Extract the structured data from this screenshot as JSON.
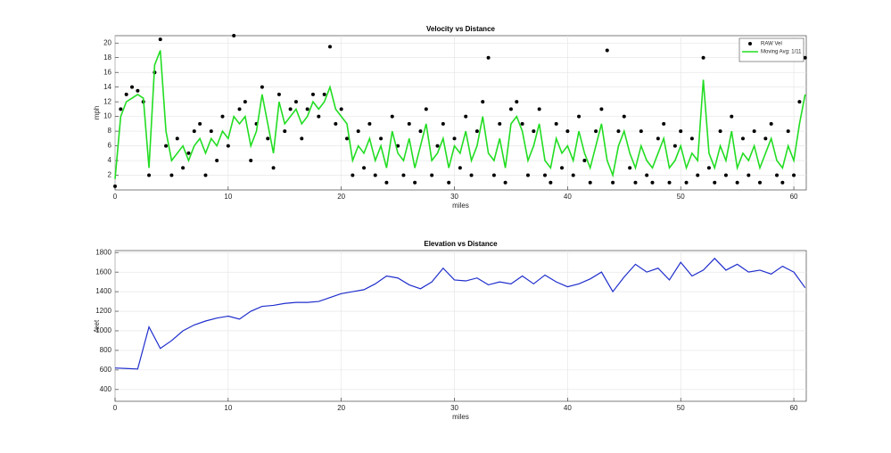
{
  "chart_data": [
    {
      "type": "scatter",
      "title": "Velocity vs Distance",
      "xlabel": "miles",
      "ylabel": "mph",
      "x": [
        0,
        0.5,
        1,
        1.5,
        2,
        2.5,
        3,
        3.5,
        4,
        4.5,
        5,
        5.5,
        6,
        6.5,
        7,
        7.5,
        8,
        8.5,
        9,
        9.5,
        10,
        10.5,
        11,
        11.5,
        12,
        12.5,
        13,
        13.5,
        14,
        14.5,
        15,
        15.5,
        16,
        16.5,
        17,
        17.5,
        18,
        18.5,
        19,
        19.5,
        20,
        20.5,
        21,
        21.5,
        22,
        22.5,
        23,
        23.5,
        24,
        24.5,
        25,
        25.5,
        26,
        26.5,
        27,
        27.5,
        28,
        28.5,
        29,
        29.5,
        30,
        30.5,
        31,
        31.5,
        32,
        32.5,
        33,
        33.5,
        34,
        34.5,
        35,
        35.5,
        36,
        36.5,
        37,
        37.5,
        38,
        38.5,
        39,
        39.5,
        40,
        40.5,
        41,
        41.5,
        42,
        42.5,
        43,
        43.5,
        44,
        44.5,
        45,
        45.5,
        46,
        46.5,
        47,
        47.5,
        48,
        48.5,
        49,
        49.5,
        50,
        50.5,
        51,
        51.5,
        52,
        52.5,
        53,
        53.5,
        54,
        54.5,
        55,
        55.5,
        56,
        56.5,
        57,
        57.5,
        58,
        58.5,
        59,
        59.5,
        60,
        60.5,
        61
      ],
      "series": [
        {
          "name": "RAW Vel",
          "type": "scatter",
          "color": "#000000",
          "values": [
            0.5,
            11,
            13,
            14,
            13.5,
            12,
            2,
            16,
            20.5,
            6,
            2,
            7,
            3,
            5,
            8,
            9,
            2,
            8,
            4,
            10,
            6,
            21,
            11,
            12,
            4,
            9,
            14,
            7,
            3,
            13,
            8,
            11,
            12,
            7,
            11,
            13,
            10,
            13,
            19.5,
            9,
            11,
            7,
            2,
            8,
            3,
            9,
            2,
            7,
            1,
            10,
            6,
            2,
            9,
            1,
            8,
            11,
            2,
            6,
            9,
            1,
            7,
            3,
            10,
            2,
            8,
            12,
            18,
            2,
            9,
            1,
            11,
            12,
            9,
            2,
            8,
            11,
            2,
            1,
            9,
            3,
            8,
            2,
            10,
            4,
            1,
            8,
            11,
            19,
            1,
            8,
            10,
            3,
            1,
            8,
            2,
            1,
            7,
            9,
            1,
            6,
            8,
            1,
            7,
            2,
            18,
            3,
            1,
            8,
            2,
            10,
            1,
            7,
            2,
            8,
            1,
            7,
            9,
            2,
            1,
            8,
            2,
            12,
            18
          ]
        },
        {
          "name": "Moving Avg: 1/11",
          "type": "line",
          "color": "#22dd22",
          "values": [
            1.5,
            10,
            12,
            12.5,
            13,
            12.5,
            3,
            17,
            19,
            8,
            4,
            5,
            6,
            4,
            6,
            7,
            5,
            7,
            6,
            8,
            7,
            10,
            9,
            10,
            6,
            8,
            13,
            9,
            5,
            12,
            9,
            10,
            11,
            9,
            10,
            12,
            11,
            12,
            14,
            11,
            10,
            9,
            4,
            6,
            5,
            7,
            4,
            6,
            3,
            8,
            5,
            4,
            7,
            3,
            6,
            9,
            4,
            5,
            7,
            3,
            6,
            5,
            8,
            4,
            6,
            10,
            5,
            4,
            7,
            3,
            9,
            10,
            8,
            4,
            6,
            9,
            4,
            3,
            7,
            5,
            6,
            4,
            8,
            5,
            3,
            6,
            9,
            4,
            2,
            6,
            8,
            5,
            3,
            6,
            4,
            3,
            5,
            7,
            3,
            4,
            6,
            3,
            5,
            4,
            15,
            5,
            3,
            6,
            4,
            8,
            3,
            5,
            4,
            6,
            3,
            5,
            7,
            4,
            3,
            6,
            4,
            9,
            13
          ]
        }
      ],
      "xlim": [
        0,
        61.1
      ],
      "ylim": [
        0,
        21
      ],
      "xticks": [
        0,
        10,
        20,
        30,
        40,
        50,
        60
      ],
      "yticks": [
        2,
        4,
        6,
        8,
        10,
        12,
        14,
        16,
        18,
        20
      ],
      "grid": true,
      "legend": "upper right"
    },
    {
      "type": "line",
      "title": "Elevation vs Distance",
      "xlabel": "miles",
      "ylabel": "feet",
      "x": [
        0,
        1,
        2,
        3,
        4,
        5,
        6,
        7,
        8,
        9,
        10,
        11,
        12,
        13,
        14,
        15,
        16,
        17,
        18,
        19,
        20,
        21,
        22,
        23,
        24,
        25,
        26,
        27,
        28,
        29,
        30,
        31,
        32,
        33,
        34,
        35,
        36,
        37,
        38,
        39,
        40,
        41,
        42,
        43,
        44,
        45,
        46,
        47,
        48,
        49,
        50,
        51,
        52,
        53,
        54,
        55,
        56,
        57,
        58,
        59,
        60,
        61
      ],
      "series": [
        {
          "name": "Elevation",
          "type": "line",
          "color": "#1f2ecc",
          "values": [
            620,
            615,
            610,
            1040,
            820,
            900,
            1000,
            1060,
            1100,
            1130,
            1150,
            1120,
            1200,
            1250,
            1260,
            1280,
            1290,
            1290,
            1300,
            1340,
            1380,
            1400,
            1420,
            1480,
            1560,
            1540,
            1470,
            1430,
            1500,
            1640,
            1520,
            1510,
            1540,
            1470,
            1500,
            1480,
            1560,
            1480,
            1570,
            1500,
            1450,
            1480,
            1530,
            1600,
            1400,
            1550,
            1680,
            1600,
            1640,
            1520,
            1700,
            1560,
            1620,
            1740,
            1620,
            1680,
            1600,
            1620,
            1580,
            1660,
            1600,
            1440
          ]
        }
      ],
      "xlim": [
        0,
        61.1
      ],
      "ylim": [
        280,
        1820
      ],
      "xticks": [
        0,
        10,
        20,
        30,
        40,
        50,
        60
      ],
      "yticks": [
        400,
        600,
        800,
        1000,
        1200,
        1400,
        1600,
        1800
      ],
      "grid": true
    }
  ]
}
